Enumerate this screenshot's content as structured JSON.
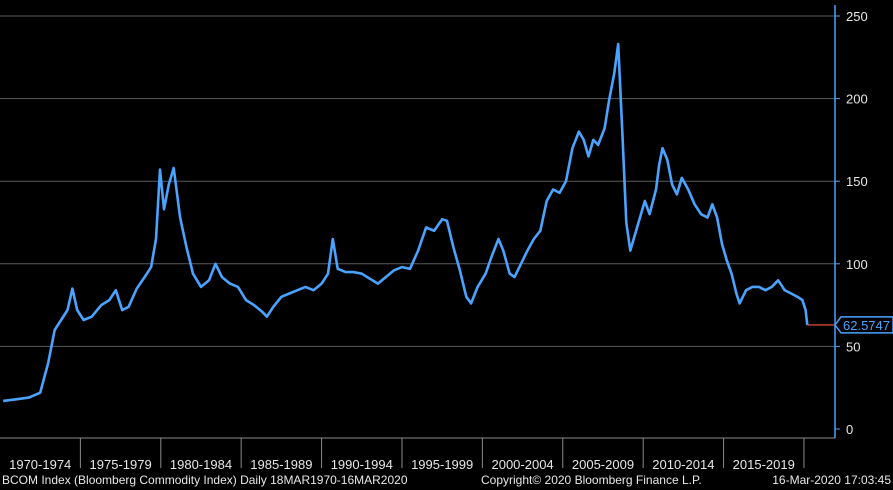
{
  "chart_data": {
    "type": "line",
    "ylim": [
      0,
      250
    ],
    "y_ticks": [
      0,
      50,
      100,
      150,
      200,
      250
    ],
    "grid": true,
    "x_categories": [
      "1970-1974",
      "1975-1979",
      "1980-1984",
      "1985-1989",
      "1990-1994",
      "1995-1999",
      "2000-2004",
      "2005-2009",
      "2010-2014",
      "2015-2019"
    ],
    "last_value_label": "62.5747",
    "series": [
      {
        "color": "#4aa3ff",
        "points": [
          [
            1970.2,
            17
          ],
          [
            1971.0,
            18
          ],
          [
            1971.8,
            19
          ],
          [
            1972.5,
            22
          ],
          [
            1973.0,
            40
          ],
          [
            1973.4,
            60
          ],
          [
            1973.8,
            66
          ],
          [
            1974.2,
            72
          ],
          [
            1974.5,
            85
          ],
          [
            1974.8,
            72
          ],
          [
            1975.2,
            66
          ],
          [
            1975.7,
            68
          ],
          [
            1976.3,
            75
          ],
          [
            1976.8,
            78
          ],
          [
            1977.2,
            84
          ],
          [
            1977.6,
            72
          ],
          [
            1978.0,
            74
          ],
          [
            1978.5,
            85
          ],
          [
            1979.0,
            92
          ],
          [
            1979.4,
            98
          ],
          [
            1979.7,
            115
          ],
          [
            1979.95,
            157
          ],
          [
            1980.2,
            133
          ],
          [
            1980.5,
            148
          ],
          [
            1980.8,
            158
          ],
          [
            1981.2,
            128
          ],
          [
            1981.6,
            110
          ],
          [
            1982.0,
            94
          ],
          [
            1982.5,
            86
          ],
          [
            1983.0,
            90
          ],
          [
            1983.4,
            100
          ],
          [
            1983.8,
            92
          ],
          [
            1984.3,
            88
          ],
          [
            1984.8,
            86
          ],
          [
            1985.3,
            78
          ],
          [
            1985.8,
            75
          ],
          [
            1986.3,
            71
          ],
          [
            1986.6,
            68
          ],
          [
            1987.0,
            74
          ],
          [
            1987.5,
            80
          ],
          [
            1988.0,
            82
          ],
          [
            1988.5,
            84
          ],
          [
            1989.0,
            86
          ],
          [
            1989.5,
            84
          ],
          [
            1990.0,
            88
          ],
          [
            1990.4,
            94
          ],
          [
            1990.7,
            115
          ],
          [
            1991.0,
            97
          ],
          [
            1991.5,
            95
          ],
          [
            1992.0,
            95
          ],
          [
            1992.5,
            94
          ],
          [
            1993.0,
            91
          ],
          [
            1993.5,
            88
          ],
          [
            1994.0,
            92
          ],
          [
            1994.5,
            96
          ],
          [
            1995.0,
            98
          ],
          [
            1995.5,
            97
          ],
          [
            1996.0,
            108
          ],
          [
            1996.5,
            122
          ],
          [
            1997.0,
            120
          ],
          [
            1997.5,
            127
          ],
          [
            1997.8,
            126
          ],
          [
            1998.2,
            110
          ],
          [
            1998.6,
            96
          ],
          [
            1999.0,
            80
          ],
          [
            1999.3,
            76
          ],
          [
            1999.7,
            86
          ],
          [
            2000.2,
            94
          ],
          [
            2000.6,
            105
          ],
          [
            2001.0,
            115
          ],
          [
            2001.3,
            108
          ],
          [
            2001.7,
            94
          ],
          [
            2002.0,
            92
          ],
          [
            2002.4,
            100
          ],
          [
            2002.8,
            108
          ],
          [
            2003.2,
            115
          ],
          [
            2003.6,
            120
          ],
          [
            2004.0,
            138
          ],
          [
            2004.4,
            145
          ],
          [
            2004.8,
            143
          ],
          [
            2005.2,
            150
          ],
          [
            2005.6,
            170
          ],
          [
            2006.0,
            180
          ],
          [
            2006.3,
            175
          ],
          [
            2006.6,
            165
          ],
          [
            2006.9,
            175
          ],
          [
            2007.2,
            172
          ],
          [
            2007.6,
            182
          ],
          [
            2007.9,
            200
          ],
          [
            2008.2,
            215
          ],
          [
            2008.45,
            233
          ],
          [
            2008.7,
            180
          ],
          [
            2008.95,
            125
          ],
          [
            2009.2,
            108
          ],
          [
            2009.5,
            118
          ],
          [
            2009.8,
            128
          ],
          [
            2010.1,
            138
          ],
          [
            2010.4,
            130
          ],
          [
            2010.8,
            145
          ],
          [
            2011.0,
            160
          ],
          [
            2011.2,
            170
          ],
          [
            2011.5,
            163
          ],
          [
            2011.8,
            148
          ],
          [
            2012.1,
            142
          ],
          [
            2012.4,
            152
          ],
          [
            2012.8,
            145
          ],
          [
            2013.2,
            136
          ],
          [
            2013.6,
            130
          ],
          [
            2014.0,
            128
          ],
          [
            2014.3,
            136
          ],
          [
            2014.6,
            128
          ],
          [
            2014.9,
            112
          ],
          [
            2015.2,
            102
          ],
          [
            2015.5,
            94
          ],
          [
            2015.8,
            82
          ],
          [
            2016.0,
            76
          ],
          [
            2016.4,
            84
          ],
          [
            2016.8,
            86
          ],
          [
            2017.2,
            86
          ],
          [
            2017.6,
            84
          ],
          [
            2018.0,
            86
          ],
          [
            2018.4,
            90
          ],
          [
            2018.8,
            84
          ],
          [
            2019.2,
            82
          ],
          [
            2019.6,
            80
          ],
          [
            2019.9,
            78
          ],
          [
            2020.1,
            72
          ],
          [
            2020.21,
            63
          ]
        ]
      }
    ]
  },
  "footer": {
    "index_desc": "BCOM Index (Bloomberg Commodity Index)  Daily 18MAR1970-16MAR2020",
    "copyright": "Copyright© 2020 Bloomberg Finance L.P.",
    "timestamp": "16-Mar-2020 17:03:45"
  },
  "colors": {
    "background": "#000000",
    "line": "#4aa3ff",
    "grid": "#5a5a5a",
    "axis": "#4aa3ff",
    "last_marker": "#ff5a4a",
    "text": "#e6e6e6"
  }
}
